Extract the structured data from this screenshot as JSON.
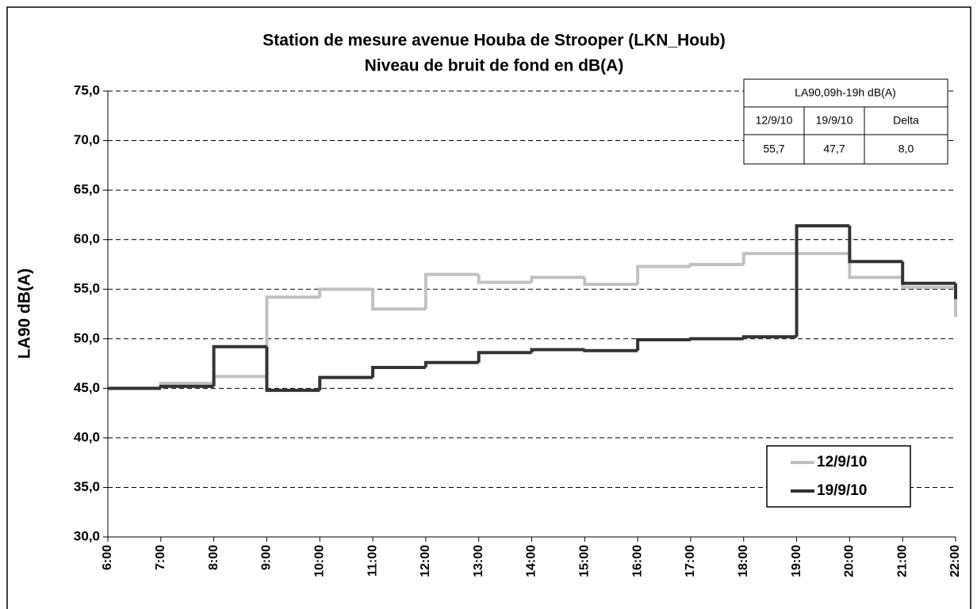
{
  "chart_data": {
    "type": "step",
    "title": "Station de mesure avenue Houba de Strooper (LKN_Houb)",
    "subtitle": "Niveau de bruit de fond en dB(A)",
    "y_label": "LA90 dB(A)",
    "categories": [
      "6:00",
      "7:00",
      "8:00",
      "9:00",
      "10:00",
      "11:00",
      "12:00",
      "13:00",
      "14:00",
      "15:00",
      "16:00",
      "17:00",
      "18:00",
      "19:00",
      "20:00",
      "21:00",
      "22:00"
    ],
    "series": [
      {
        "name": "12/9/10",
        "color": "#c0c0c0",
        "values": [
          45.0,
          45.5,
          46.2,
          54.2,
          55.0,
          53.0,
          56.5,
          55.7,
          56.2,
          55.5,
          57.3,
          57.5,
          58.6,
          58.6,
          56.2,
          55.2,
          52.2
        ]
      },
      {
        "name": "19/9/10",
        "color": "#333333",
        "values": [
          45.0,
          45.2,
          49.2,
          44.8,
          46.1,
          47.1,
          47.6,
          48.6,
          48.9,
          48.8,
          49.9,
          50.0,
          50.2,
          61.4,
          57.8,
          55.6,
          54.0
        ]
      }
    ],
    "ylim": [
      30,
      75
    ],
    "yticks": [
      {
        "value": 30,
        "label": "30,0"
      },
      {
        "value": 35,
        "label": "35,0"
      },
      {
        "value": 40,
        "label": "40,0"
      },
      {
        "value": 45,
        "label": "45,0"
      },
      {
        "value": 50,
        "label": "50,0"
      },
      {
        "value": 55,
        "label": "55,0"
      },
      {
        "value": 60,
        "label": "60,0"
      },
      {
        "value": 65,
        "label": "65,0"
      },
      {
        "value": 70,
        "label": "70,0"
      },
      {
        "value": 75,
        "label": "75,0"
      }
    ],
    "grid": true,
    "legend": "lower right",
    "table": {
      "header": "LA90,09h-19h dB(A)",
      "columns": [
        "12/9/10",
        "19/9/10",
        "Delta"
      ],
      "row": [
        "55,7",
        "47,7",
        "8,0"
      ]
    }
  }
}
